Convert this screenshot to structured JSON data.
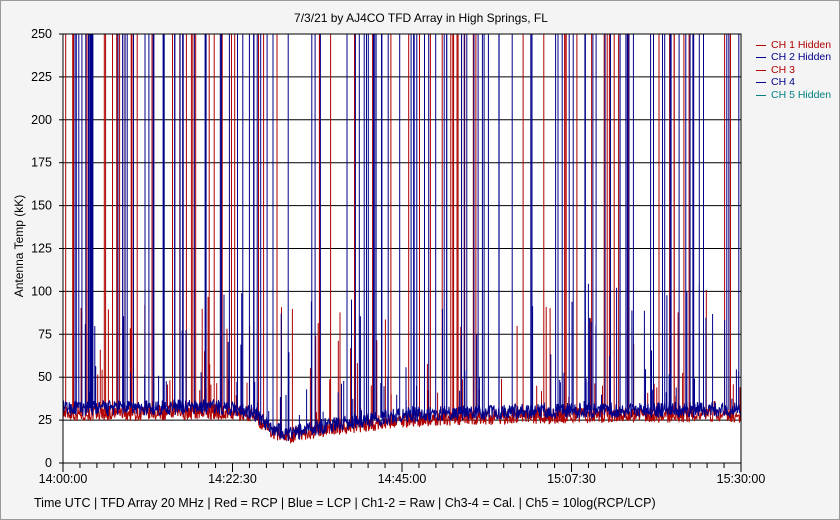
{
  "chart_data": {
    "type": "line",
    "title": "7/3/21  by  AJ4CO TFD Array  in  High Springs, FL",
    "ylabel": "Antenna Temp (kK)",
    "xlabel": "Time UTC | TFD Array 20 MHz | Red = RCP | Blue = LCP | Ch1-2 = Raw | Ch3-4 = Cal. | Ch5 = 10log(RCP/LCP)",
    "ylim": [
      0,
      250
    ],
    "yticks": [
      "0",
      "25",
      "50",
      "75",
      "100",
      "125",
      "150",
      "175",
      "200",
      "225",
      "250"
    ],
    "xlim": [
      "14:00:00",
      "15:30:00"
    ],
    "xticks": [
      "14:00:00",
      "14:22:30",
      "14:45:00",
      "15:07:30",
      "15:30:00"
    ],
    "grid": true,
    "legend_position": "right",
    "legend": [
      {
        "name": "CH 1 Hidden",
        "color": "#b00000"
      },
      {
        "name": "CH 2 Hidden",
        "color": "#00008b"
      },
      {
        "name": "CH 3",
        "color": "#b00000"
      },
      {
        "name": "CH 4",
        "color": "#00008b"
      },
      {
        "name": "CH 5 Hidden",
        "color": "#008080"
      }
    ],
    "series": [
      {
        "name": "CH 3",
        "color": "#b00000",
        "baseline": [
          {
            "t": "14:00:00",
            "y": 29
          },
          {
            "t": "14:10:00",
            "y": 29
          },
          {
            "t": "14:20:00",
            "y": 30
          },
          {
            "t": "14:25:00",
            "y": 28
          },
          {
            "t": "14:28:00",
            "y": 18
          },
          {
            "t": "14:30:00",
            "y": 16
          },
          {
            "t": "14:35:00",
            "y": 20
          },
          {
            "t": "14:45:00",
            "y": 25
          },
          {
            "t": "15:00:00",
            "y": 27
          },
          {
            "t": "15:15:00",
            "y": 28
          },
          {
            "t": "15:30:00",
            "y": 28
          }
        ]
      },
      {
        "name": "CH 4",
        "color": "#00008b",
        "baseline": [
          {
            "t": "14:00:00",
            "y": 32
          },
          {
            "t": "14:10:00",
            "y": 32
          },
          {
            "t": "14:20:00",
            "y": 33
          },
          {
            "t": "14:25:00",
            "y": 30
          },
          {
            "t": "14:28:00",
            "y": 20
          },
          {
            "t": "14:30:00",
            "y": 17
          },
          {
            "t": "14:35:00",
            "y": 22
          },
          {
            "t": "14:45:00",
            "y": 28
          },
          {
            "t": "15:00:00",
            "y": 30
          },
          {
            "t": "15:15:00",
            "y": 31
          },
          {
            "t": "15:30:00",
            "y": 31
          }
        ]
      }
    ]
  }
}
